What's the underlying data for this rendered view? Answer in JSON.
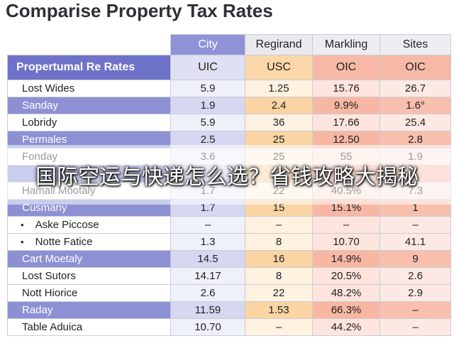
{
  "chart_data": {
    "type": "table",
    "title": "Comparise Property Tax Rates",
    "columns": [
      "City",
      "Regirand",
      "Markling",
      "Sites"
    ],
    "subheader": {
      "label": "Propertumal Re Rates",
      "values": [
        "UIC",
        "USC",
        "OIC",
        "OIC"
      ]
    },
    "rows": [
      {
        "name": "Lost Wides",
        "values": [
          "5.9",
          "1.25",
          "15.76",
          "26.7"
        ],
        "band": false,
        "sub": false
      },
      {
        "name": "Sanday",
        "values": [
          "1.9",
          "2.4",
          "9.9%",
          "1.6°"
        ],
        "band": true,
        "sub": false
      },
      {
        "name": "Lobridy",
        "values": [
          "5.9",
          "36",
          "17.66",
          "25.4"
        ],
        "band": false,
        "sub": false
      },
      {
        "name": "Permales",
        "values": [
          "2.5",
          "25",
          "12.50",
          "2.8"
        ],
        "band": true,
        "sub": false
      },
      {
        "name": "Fonday",
        "values": [
          "3.6",
          "25",
          "55",
          "1.9"
        ],
        "band": false,
        "sub": false
      },
      {
        "name": "",
        "values": [
          "",
          "",
          "",
          ""
        ],
        "band": true,
        "sub": false
      },
      {
        "name": "Hamall Mootaly",
        "values": [
          "1.7",
          "22",
          "40.5%",
          "7.3"
        ],
        "band": false,
        "sub": false
      },
      {
        "name": "Cusmany",
        "values": [
          "1.7",
          "15",
          "15.1%",
          "1"
        ],
        "band": true,
        "sub": false
      },
      {
        "name": "Aske Piccose",
        "values": [
          "–",
          "–",
          "–",
          "–"
        ],
        "band": false,
        "sub": true
      },
      {
        "name": "Notte Fatice",
        "values": [
          "1.3",
          "8",
          "10.70",
          "41.1"
        ],
        "band": false,
        "sub": true
      },
      {
        "name": "Cart Moetaly",
        "values": [
          "14.5",
          "16",
          "14.9%",
          "9"
        ],
        "band": true,
        "sub": false
      },
      {
        "name": "Lost Sutors",
        "values": [
          "14.17",
          "8",
          "20.5%",
          "2.6"
        ],
        "band": false,
        "sub": false
      },
      {
        "name": "Nott Hiorice",
        "values": [
          "2.6",
          "22",
          "48.2%",
          "2.9"
        ],
        "band": false,
        "sub": false
      },
      {
        "name": "Raday",
        "values": [
          "11.59",
          "1.53",
          "66.3%",
          "–"
        ],
        "band": true,
        "sub": false
      },
      {
        "name": "Table Aduica",
        "values": [
          "10.70",
          "–",
          "44.2%",
          "–"
        ],
        "band": false,
        "sub": false
      }
    ]
  },
  "overlay_text": "国际空运与快递怎么选？省钱攻略大揭秘"
}
